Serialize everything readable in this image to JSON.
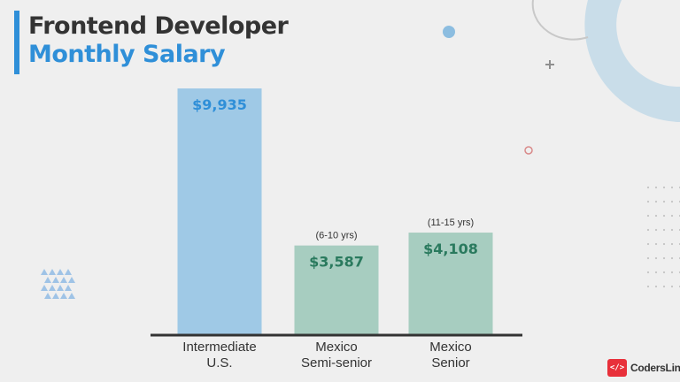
{
  "title": {
    "line1": "Frontend Developer",
    "line2": "Monthly Salary"
  },
  "logo": {
    "icon_text": "</>",
    "name": "CodersLink"
  },
  "colors": {
    "title_dark": "#333333",
    "accent_blue": "#2f8fd8",
    "bar_blue": "#9fc9e6",
    "bar_green": "#a7cdc0",
    "value_blue": "#2f8fd8",
    "value_green": "#2a7a5e",
    "axis": "#333333",
    "background": "#efefef",
    "logo_red": "#e8303a"
  },
  "chart_data": {
    "type": "bar",
    "categories": [
      "Intermediate\nU.S.",
      "Mexico\nSemi-senior",
      "Mexico\nSenior"
    ],
    "values": [
      9935,
      3587,
      4108
    ],
    "value_labels": [
      "$9,935",
      "$3,587",
      "$4,108"
    ],
    "annotations": [
      "",
      "(6-10 yrs)",
      "(11-15 yrs)"
    ],
    "bar_colors": [
      "#9fc9e6",
      "#a7cdc0",
      "#a7cdc0"
    ],
    "value_label_colors": [
      "#2f8fd8",
      "#2a7a5e",
      "#2a7a5e"
    ],
    "title": "Frontend Developer Monthly Salary",
    "xlabel": "",
    "ylabel": "",
    "ylim": [
      0,
      9935
    ],
    "grid": false
  }
}
